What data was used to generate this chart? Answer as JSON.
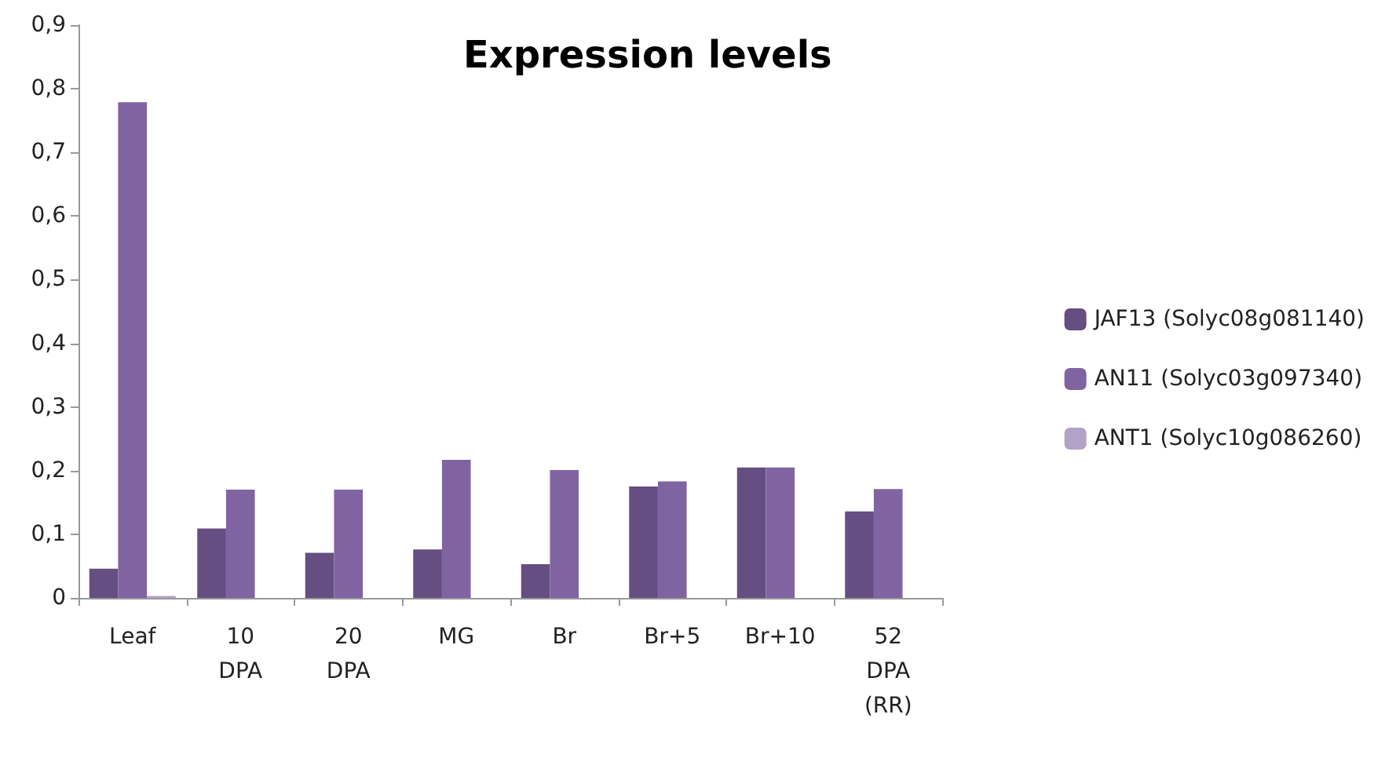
{
  "chart_data": {
    "type": "bar",
    "title": "Expression levels",
    "categories": [
      "Leaf",
      "10 DPA",
      "20 DPA",
      "MG",
      "Br",
      "Br+5",
      "Br+10",
      "52 DPA (RR)"
    ],
    "series": [
      {
        "name": "JAF13 (Solyc08g081140)",
        "color": "#644e82",
        "values": [
          0.046,
          0.109,
          0.071,
          0.076,
          0.053,
          0.175,
          0.205,
          0.136
        ]
      },
      {
        "name": "AN11 (Solyc03g097340)",
        "color": "#8064a2",
        "values": [
          0.779,
          0.17,
          0.17,
          0.217,
          0.201,
          0.183,
          0.205,
          0.171
        ]
      },
      {
        "name": "ANT1 (Solyc10g086260)",
        "color": "#b3a2c7",
        "values": [
          0.003,
          0,
          0,
          0,
          0,
          0,
          0,
          0
        ]
      }
    ],
    "ylim": [
      0,
      0.9
    ],
    "yticks": [
      {
        "value": 0,
        "label": "0"
      },
      {
        "value": 0.1,
        "label": "0,1"
      },
      {
        "value": 0.2,
        "label": "0,2"
      },
      {
        "value": 0.3,
        "label": "0,3"
      },
      {
        "value": 0.4,
        "label": "0,4"
      },
      {
        "value": 0.5,
        "label": "0,5"
      },
      {
        "value": 0.6,
        "label": "0,6"
      },
      {
        "value": 0.7,
        "label": "0,7"
      },
      {
        "value": 0.8,
        "label": "0,8"
      },
      {
        "value": 0.9,
        "label": "0,9"
      }
    ],
    "grid": false,
    "legend": "right"
  }
}
